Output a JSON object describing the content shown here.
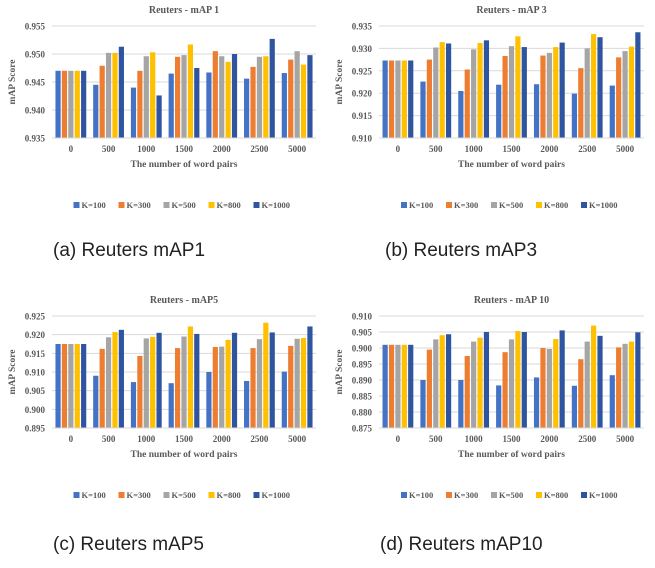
{
  "colors": [
    "#4472C4",
    "#ED7D31",
    "#A5A5A5",
    "#FFC000",
    "#2F55A0"
  ],
  "captions": [
    "(a) Reuters mAP1",
    "(b) Reuters mAP3",
    "(c) Reuters mAP5",
    "(d) Reuters mAP10"
  ],
  "chart_data": [
    {
      "type": "bar",
      "title": "Reuters - mAP 1",
      "xlabel": "The number of word pairs",
      "ylabel": "mAP Score",
      "ylim": [
        0.935,
        0.955
      ],
      "yticks": [
        "0.935",
        "0.940",
        "0.945",
        "0.950",
        "0.955"
      ],
      "grid": true,
      "legend": "bottom",
      "categories": [
        "0",
        "500",
        "1000",
        "1500",
        "2000",
        "2500",
        "5000"
      ],
      "series": [
        {
          "name": "K=100",
          "values": [
            0.947,
            0.9445,
            0.944,
            0.9465,
            0.9467,
            0.9456,
            0.9466
          ]
        },
        {
          "name": "K=300",
          "values": [
            0.947,
            0.9479,
            0.947,
            0.9495,
            0.9505,
            0.9477,
            0.949
          ]
        },
        {
          "name": "K=500",
          "values": [
            0.947,
            0.9502,
            0.9496,
            0.9498,
            0.9496,
            0.9495,
            0.9505
          ]
        },
        {
          "name": "K=800",
          "values": [
            0.947,
            0.9502,
            0.9503,
            0.9517,
            0.9486,
            0.9496,
            0.9481
          ]
        },
        {
          "name": "K=1000",
          "values": [
            0.947,
            0.9513,
            0.9426,
            0.9475,
            0.95,
            0.9527,
            0.9498
          ]
        }
      ]
    },
    {
      "type": "bar",
      "title": "Reuters - mAP 3",
      "xlabel": "The number of word pairs",
      "ylabel": "mAP Score",
      "ylim": [
        0.91,
        0.935
      ],
      "yticks": [
        "0.910",
        "0.915",
        "0.920",
        "0.925",
        "0.930",
        "0.935"
      ],
      "grid": true,
      "legend": "bottom",
      "categories": [
        "0",
        "500",
        "1000",
        "1500",
        "2000",
        "2500",
        "5000"
      ],
      "series": [
        {
          "name": "K=100",
          "values": [
            0.9273,
            0.9226,
            0.9205,
            0.9219,
            0.922,
            0.9199,
            0.9217
          ]
        },
        {
          "name": "K=300",
          "values": [
            0.9273,
            0.9275,
            0.9253,
            0.9283,
            0.9284,
            0.9256,
            0.928
          ]
        },
        {
          "name": "K=500",
          "values": [
            0.9273,
            0.9302,
            0.9298,
            0.9305,
            0.929,
            0.93,
            0.9294
          ]
        },
        {
          "name": "K=800",
          "values": [
            0.9273,
            0.9314,
            0.9312,
            0.9327,
            0.9303,
            0.9332,
            0.9304
          ]
        },
        {
          "name": "K=1000",
          "values": [
            0.9273,
            0.9311,
            0.9318,
            0.9303,
            0.9313,
            0.9325,
            0.9336
          ]
        }
      ]
    },
    {
      "type": "bar",
      "title": "Reuters - mAP5",
      "xlabel": "The number of word pairs",
      "ylabel": "mAP Score",
      "ylim": [
        0.895,
        0.925
      ],
      "yticks": [
        "0.895",
        "0.900",
        "0.905",
        "0.910",
        "0.915",
        "0.920",
        "0.925"
      ],
      "grid": true,
      "legend": "bottom",
      "categories": [
        "0",
        "500",
        "1000",
        "1500",
        "2000",
        "2500",
        "5000"
      ],
      "series": [
        {
          "name": "K=100",
          "values": [
            0.9175,
            0.909,
            0.9073,
            0.907,
            0.91,
            0.9076,
            0.9101
          ]
        },
        {
          "name": "K=300",
          "values": [
            0.9175,
            0.9162,
            0.9143,
            0.9164,
            0.9167,
            0.9164,
            0.917
          ]
        },
        {
          "name": "K=500",
          "values": [
            0.9175,
            0.9193,
            0.919,
            0.9195,
            0.9168,
            0.9188,
            0.9189
          ]
        },
        {
          "name": "K=800",
          "values": [
            0.9175,
            0.9207,
            0.9194,
            0.9222,
            0.9186,
            0.9232,
            0.9191
          ]
        },
        {
          "name": "K=1000",
          "values": [
            0.9175,
            0.9213,
            0.9205,
            0.9202,
            0.9205,
            0.9206,
            0.9222
          ]
        }
      ]
    },
    {
      "type": "bar",
      "title": "Reuters - mAP 10",
      "xlabel": "The number of word pairs",
      "ylabel": "mAP Score",
      "ylim": [
        0.875,
        0.91
      ],
      "yticks": [
        "0.875",
        "0.880",
        "0.885",
        "0.890",
        "0.895",
        "0.900",
        "0.905",
        "0.910"
      ],
      "grid": true,
      "legend": "bottom",
      "categories": [
        "0",
        "500",
        "1000",
        "1500",
        "2000",
        "2500",
        "5000"
      ],
      "series": [
        {
          "name": "K=100",
          "values": [
            0.901,
            0.89,
            0.89,
            0.8883,
            0.8908,
            0.8882,
            0.8915
          ]
        },
        {
          "name": "K=300",
          "values": [
            0.901,
            0.8995,
            0.8975,
            0.8987,
            0.9,
            0.8965,
            0.9002
          ]
        },
        {
          "name": "K=500",
          "values": [
            0.901,
            0.9027,
            0.902,
            0.9027,
            0.8997,
            0.902,
            0.9013
          ]
        },
        {
          "name": "K=800",
          "values": [
            0.901,
            0.904,
            0.9032,
            0.9053,
            0.9028,
            0.907,
            0.902
          ]
        },
        {
          "name": "K=1000",
          "values": [
            0.901,
            0.9043,
            0.905,
            0.905,
            0.9055,
            0.9038,
            0.9049
          ]
        }
      ]
    }
  ]
}
